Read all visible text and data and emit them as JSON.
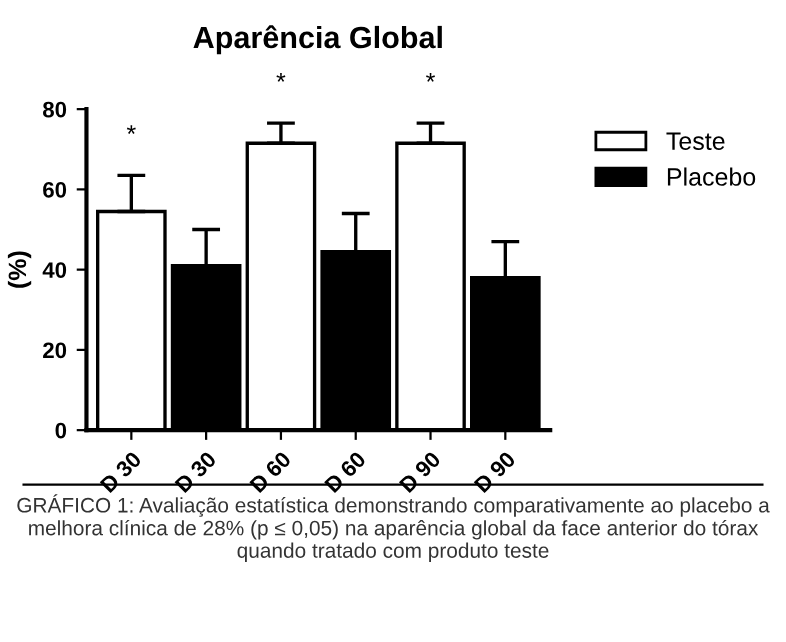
{
  "chart_data": {
    "type": "bar",
    "title": "Aparência Global",
    "ylabel": "(%)",
    "categories": [
      "D 30",
      "D 30",
      "D 60",
      "D 60",
      "D 90",
      "D 90"
    ],
    "series": [
      {
        "name": "Teste",
        "color": "#ffffff",
        "values": [
          54.5,
          null,
          71.5,
          null,
          71.5,
          null
        ],
        "errors": [
          [
            54.5,
            63.5
          ],
          null,
          [
            71.5,
            76.5
          ],
          null,
          [
            71.5,
            76.5
          ],
          null
        ]
      },
      {
        "name": "Placebo",
        "color": "#000000",
        "values": [
          null,
          41,
          null,
          44.5,
          null,
          38
        ],
        "errors": [
          null,
          [
            41,
            50
          ],
          null,
          [
            44.5,
            54
          ],
          null,
          [
            38,
            47
          ]
        ]
      }
    ],
    "ylim": [
      0,
      80
    ],
    "yticks": [
      0,
      20,
      40,
      60,
      80
    ],
    "grid": false,
    "legend": "right",
    "annotations": [
      "*",
      "*",
      "*",
      "GRÁFICO 1: Avaliação estatística demonstrando comparativamente ao placebo a melhora clínica de 28% (p ≤ 0,05) na aparência global da face anterior do tórax quando tratado com produto teste"
    ]
  }
}
